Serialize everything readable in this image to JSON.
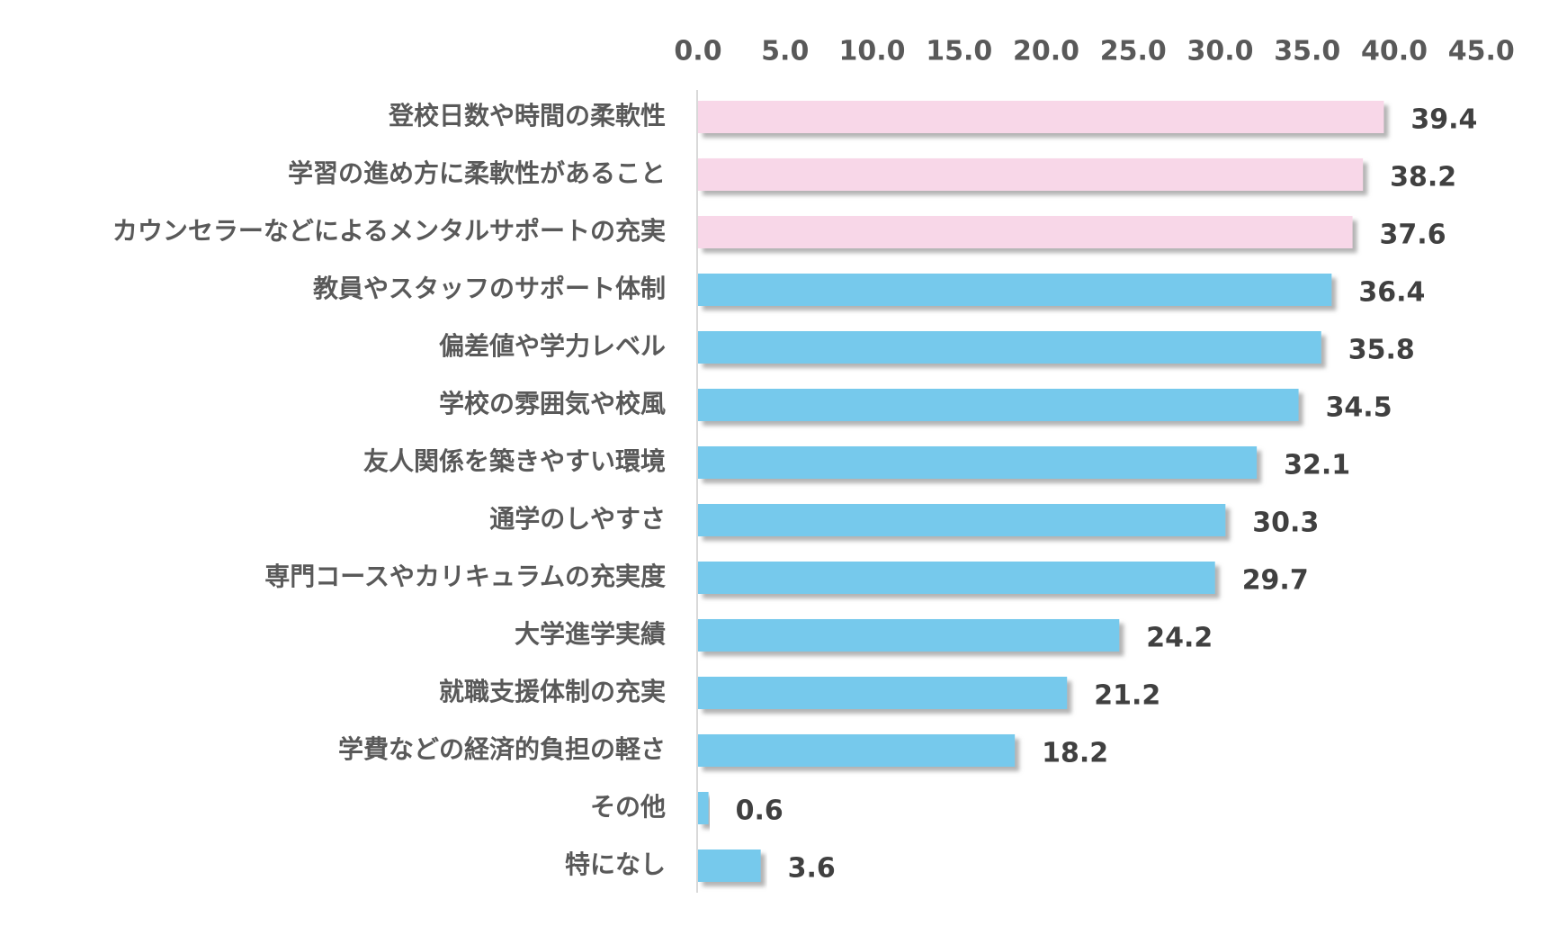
{
  "chart_data": {
    "type": "bar",
    "orientation": "horizontal",
    "title": "",
    "xlabel": "",
    "ylabel": "",
    "xlim": [
      0,
      45
    ],
    "ticks": [
      "0.0",
      "5.0",
      "10.0",
      "15.0",
      "20.0",
      "25.0",
      "30.0",
      "35.0",
      "40.0",
      "45.0"
    ],
    "grid": false,
    "legend": "none",
    "categories": [
      "登校日数や時間の柔軟性",
      "学習の進め方に柔軟性があること",
      "カウンセラーなどによるメンタルサポートの充実",
      "教員やスタッフのサポート体制",
      "偏差値や学力レベル",
      "学校の雰囲気や校風",
      "友人関係を築きやすい環境",
      "通学のしやすさ",
      "専門コースやカリキュラムの充実度",
      "大学進学実績",
      "就職支援体制の充実",
      "学費などの経済的負担の軽さ",
      "その他",
      "特になし"
    ],
    "values": [
      39.4,
      38.2,
      37.6,
      36.4,
      35.8,
      34.5,
      32.1,
      30.3,
      29.7,
      24.2,
      21.2,
      18.2,
      0.6,
      3.6
    ],
    "value_labels": [
      "39.4",
      "38.2",
      "37.6",
      "36.4",
      "35.8",
      "34.5",
      "32.1",
      "30.3",
      "29.7",
      "24.2",
      "21.2",
      "18.2",
      "0.6",
      "3.6"
    ],
    "highlight_count": 3,
    "colors": {
      "highlight": "#f8d7e8",
      "default": "#76c9ec",
      "shadow": "#bfbfbf",
      "axis": "#d9d9d9"
    }
  }
}
